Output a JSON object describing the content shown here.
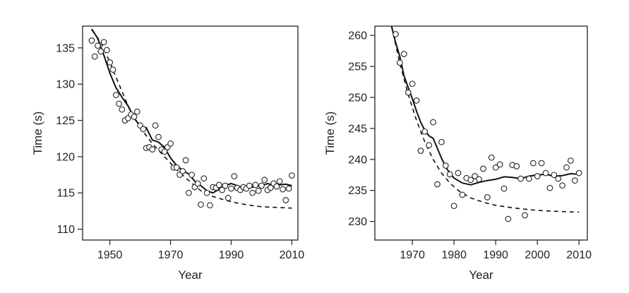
{
  "chart_data": [
    {
      "type": "scatter",
      "xlabel": "Year",
      "ylabel": "Time (s)",
      "xlim": [
        1941,
        2012
      ],
      "ylim": [
        108.5,
        138
      ],
      "xticks": [
        "1950",
        "1970",
        "1990",
        "2010"
      ],
      "yticks": [
        "110",
        "115",
        "120",
        "125",
        "130",
        "135"
      ],
      "grid": false,
      "legend": "none",
      "points": [
        [
          1944,
          136.0
        ],
        [
          1945,
          133.8
        ],
        [
          1946,
          135.3
        ],
        [
          1947,
          134.5
        ],
        [
          1948,
          135.8
        ],
        [
          1949,
          134.7
        ],
        [
          1950,
          133.0
        ],
        [
          1951,
          132.0
        ],
        [
          1952,
          128.5
        ],
        [
          1953,
          127.3
        ],
        [
          1954,
          126.5
        ],
        [
          1955,
          125.0
        ],
        [
          1956,
          125.3
        ],
        [
          1957,
          125.8
        ],
        [
          1958,
          125.5
        ],
        [
          1959,
          126.2
        ],
        [
          1960,
          124.3
        ],
        [
          1961,
          123.8
        ],
        [
          1962,
          121.2
        ],
        [
          1963,
          121.3
        ],
        [
          1964,
          121.0
        ],
        [
          1965,
          124.3
        ],
        [
          1966,
          122.7
        ],
        [
          1967,
          121.0
        ],
        [
          1968,
          120.7
        ],
        [
          1969,
          121.3
        ],
        [
          1970,
          121.8
        ],
        [
          1971,
          118.5
        ],
        [
          1972,
          118.5
        ],
        [
          1973,
          117.5
        ],
        [
          1974,
          118.0
        ],
        [
          1975,
          119.5
        ],
        [
          1976,
          115.0
        ],
        [
          1977,
          117.5
        ],
        [
          1978,
          115.8
        ],
        [
          1979,
          116.3
        ],
        [
          1980,
          113.4
        ],
        [
          1981,
          117.0
        ],
        [
          1982,
          115.0
        ],
        [
          1983,
          113.3
        ],
        [
          1984,
          115.8
        ],
        [
          1985,
          115.7
        ],
        [
          1986,
          116.1
        ],
        [
          1987,
          115.4
        ],
        [
          1988,
          116.0
        ],
        [
          1989,
          114.3
        ],
        [
          1990,
          115.6
        ],
        [
          1991,
          117.3
        ],
        [
          1992,
          115.7
        ],
        [
          1993,
          115.4
        ],
        [
          1994,
          115.8
        ],
        [
          1995,
          115.6
        ],
        [
          1996,
          116.0
        ],
        [
          1997,
          115.0
        ],
        [
          1998,
          116.1
        ],
        [
          1999,
          115.3
        ],
        [
          2000,
          116.0
        ],
        [
          2001,
          116.8
        ],
        [
          2002,
          115.4
        ],
        [
          2003,
          115.7
        ],
        [
          2004,
          116.3
        ],
        [
          2005,
          115.9
        ],
        [
          2006,
          116.6
        ],
        [
          2007,
          115.5
        ],
        [
          2008,
          114.0
        ],
        [
          2009,
          115.6
        ],
        [
          2010,
          117.4
        ]
      ],
      "series": [
        {
          "style": "solid",
          "values": [
            [
              1944,
              137.6
            ],
            [
              1946,
              136.3
            ],
            [
              1948,
              134.0
            ],
            [
              1950,
              131.5
            ],
            [
              1952,
              129.5
            ],
            [
              1954,
              128.2
            ],
            [
              1956,
              127.0
            ],
            [
              1958,
              125.3
            ],
            [
              1960,
              124.2
            ],
            [
              1962,
              124.0
            ],
            [
              1964,
              122.3
            ],
            [
              1966,
              122.0
            ],
            [
              1968,
              121.3
            ],
            [
              1970,
              119.8
            ],
            [
              1972,
              118.8
            ],
            [
              1974,
              118.1
            ],
            [
              1976,
              117.6
            ],
            [
              1978,
              116.6
            ],
            [
              1980,
              116.0
            ],
            [
              1982,
              115.3
            ],
            [
              1984,
              115.0
            ],
            [
              1986,
              115.5
            ],
            [
              1988,
              116.0
            ],
            [
              1990,
              116.3
            ],
            [
              1992,
              116.0
            ],
            [
              1994,
              115.7
            ],
            [
              1996,
              115.7
            ],
            [
              1998,
              115.9
            ],
            [
              2000,
              116.0
            ],
            [
              2002,
              116.3
            ],
            [
              2004,
              116.0
            ],
            [
              2006,
              116.1
            ],
            [
              2008,
              116.2
            ],
            [
              2010,
              116.0
            ]
          ]
        },
        {
          "style": "dashed",
          "values": [
            [
              1944,
              137.5
            ],
            [
              1947,
              135.8
            ],
            [
              1950,
              133.0
            ],
            [
              1953,
              130.0
            ],
            [
              1956,
              127.0
            ],
            [
              1960,
              124.0
            ],
            [
              1964,
              121.8
            ],
            [
              1968,
              120.0
            ],
            [
              1972,
              118.2
            ],
            [
              1976,
              116.7
            ],
            [
              1980,
              115.3
            ],
            [
              1984,
              114.5
            ],
            [
              1988,
              114.0
            ],
            [
              1992,
              113.6
            ],
            [
              1996,
              113.3
            ],
            [
              2000,
              113.1
            ],
            [
              2005,
              113.0
            ],
            [
              2010,
              112.9
            ]
          ]
        }
      ]
    },
    {
      "type": "scatter",
      "xlabel": "Year",
      "ylabel": "Time (s)",
      "xlim": [
        1961,
        2012
      ],
      "ylim": [
        227,
        261.5
      ],
      "xticks": [
        "1970",
        "1980",
        "1990",
        "2000",
        "2010"
      ],
      "yticks": [
        "230",
        "235",
        "240",
        "245",
        "250",
        "255",
        "260"
      ],
      "grid": false,
      "legend": "none",
      "points": [
        [
          1966,
          260.2
        ],
        [
          1967,
          255.6
        ],
        [
          1968,
          257.0
        ],
        [
          1969,
          250.8
        ],
        [
          1970,
          252.2
        ],
        [
          1971,
          249.5
        ],
        [
          1972,
          241.4
        ],
        [
          1973,
          244.5
        ],
        [
          1974,
          242.3
        ],
        [
          1975,
          246.0
        ],
        [
          1976,
          236.0
        ],
        [
          1977,
          242.8
        ],
        [
          1978,
          239.0
        ],
        [
          1979,
          237.6
        ],
        [
          1980,
          232.5
        ],
        [
          1981,
          237.8
        ],
        [
          1982,
          234.3
        ],
        [
          1983,
          237.0
        ],
        [
          1984,
          236.7
        ],
        [
          1985,
          237.3
        ],
        [
          1986,
          236.8
        ],
        [
          1987,
          238.5
        ],
        [
          1988,
          233.9
        ],
        [
          1989,
          240.3
        ],
        [
          1990,
          238.7
        ],
        [
          1991,
          239.2
        ],
        [
          1992,
          235.3
        ],
        [
          1993,
          230.4
        ],
        [
          1994,
          239.1
        ],
        [
          1995,
          238.9
        ],
        [
          1996,
          236.9
        ],
        [
          1997,
          231.0
        ],
        [
          1998,
          236.9
        ],
        [
          1999,
          239.4
        ],
        [
          2000,
          237.3
        ],
        [
          2001,
          239.4
        ],
        [
          2002,
          237.8
        ],
        [
          2003,
          235.4
        ],
        [
          2004,
          237.5
        ],
        [
          2005,
          236.9
        ],
        [
          2006,
          235.8
        ],
        [
          2007,
          238.7
        ],
        [
          2008,
          239.8
        ],
        [
          2009,
          236.6
        ],
        [
          2010,
          237.8
        ]
      ],
      "series": [
        {
          "style": "solid",
          "values": [
            [
              1965,
              261.5
            ],
            [
              1966,
              258.8
            ],
            [
              1967,
              256.6
            ],
            [
              1968,
              253.5
            ],
            [
              1969,
              251.6
            ],
            [
              1970,
              249.8
            ],
            [
              1971,
              247.8
            ],
            [
              1972,
              246.0
            ],
            [
              1973,
              244.7
            ],
            [
              1974,
              243.8
            ],
            [
              1975,
              243.4
            ],
            [
              1976,
              241.8
            ],
            [
              1977,
              240.2
            ],
            [
              1978,
              238.8
            ],
            [
              1979,
              237.8
            ],
            [
              1980,
              237.0
            ],
            [
              1982,
              236.2
            ],
            [
              1984,
              235.9
            ],
            [
              1986,
              236.3
            ],
            [
              1988,
              236.6
            ],
            [
              1990,
              236.8
            ],
            [
              1992,
              237.2
            ],
            [
              1994,
              237.1
            ],
            [
              1996,
              236.9
            ],
            [
              1998,
              237.3
            ],
            [
              2000,
              237.5
            ],
            [
              2002,
              237.6
            ],
            [
              2004,
              237.3
            ],
            [
              2006,
              237.4
            ],
            [
              2008,
              237.7
            ],
            [
              2010,
              237.6
            ]
          ]
        },
        {
          "style": "dashed",
          "values": [
            [
              1965,
              261.5
            ],
            [
              1967,
              255.5
            ],
            [
              1969,
              250.5
            ],
            [
              1971,
              246.3
            ],
            [
              1973,
              242.8
            ],
            [
              1975,
              240.0
            ],
            [
              1977,
              237.8
            ],
            [
              1979,
              236.2
            ],
            [
              1981,
              235.0
            ],
            [
              1984,
              233.8
            ],
            [
              1987,
              233.1
            ],
            [
              1990,
              232.6
            ],
            [
              1994,
              232.2
            ],
            [
              1998,
              231.9
            ],
            [
              2002,
              231.7
            ],
            [
              2006,
              231.6
            ],
            [
              2010,
              231.5
            ]
          ]
        }
      ]
    }
  ]
}
